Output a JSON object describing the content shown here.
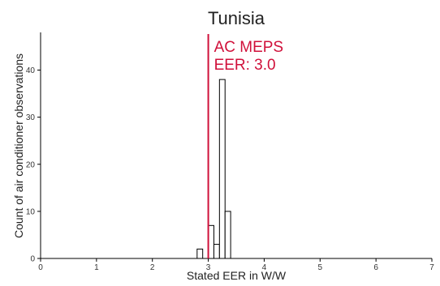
{
  "chart_data": {
    "type": "bar",
    "title": "Tunisia",
    "xlabel": "Stated EER in W/W",
    "ylabel": "Count of air conditioner observations",
    "xlim": [
      0,
      7
    ],
    "ylim": [
      0,
      48
    ],
    "xticks": [
      0,
      1,
      2,
      3,
      4,
      5,
      6,
      7
    ],
    "yticks": [
      0,
      10,
      20,
      30,
      40
    ],
    "bin_width": 0.1,
    "bins": [
      {
        "x0": 2.8,
        "x1": 2.9,
        "count": 2
      },
      {
        "x0": 3.0,
        "x1": 3.1,
        "count": 7
      },
      {
        "x0": 3.1,
        "x1": 3.2,
        "count": 3
      },
      {
        "x0": 3.2,
        "x1": 3.3,
        "count": 38
      },
      {
        "x0": 3.3,
        "x1": 3.4,
        "count": 10
      }
    ],
    "reference_line": {
      "x": 3.0,
      "label_line1": "AC MEPS",
      "label_line2": "EER: 3.0",
      "color": "#d0103a"
    },
    "bar_fill": "#ffffff",
    "bar_stroke": "#000000",
    "grid": false,
    "legend": "none"
  }
}
